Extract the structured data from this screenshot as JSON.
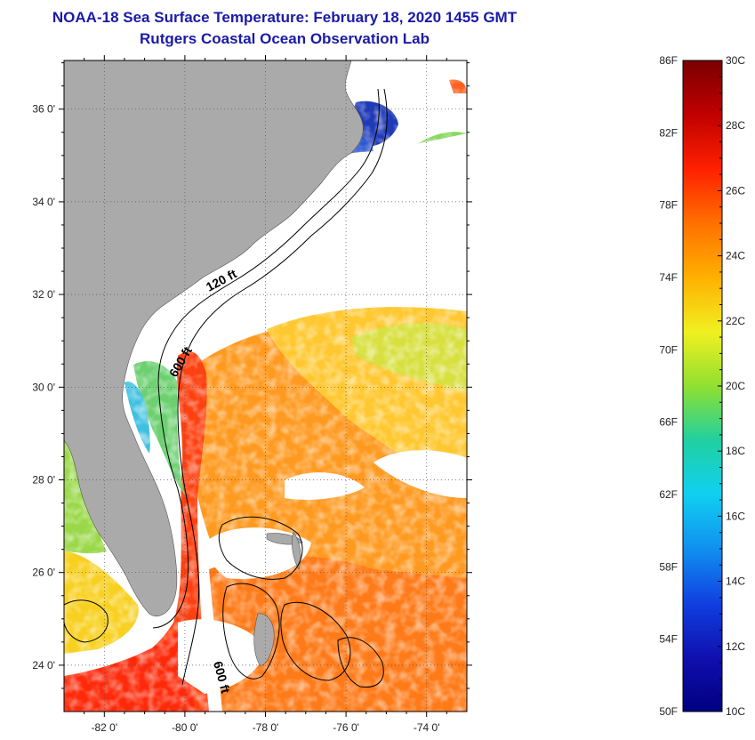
{
  "title": {
    "line1": "NOAA-18 Sea Surface Temperature:  February 18, 2020 1455 GMT",
    "line2": "Rutgers Coastal Ocean Observation Lab"
  },
  "map": {
    "lat_ticks": [
      {
        "value": 36,
        "label": "36 0'"
      },
      {
        "value": 34,
        "label": "34 0'"
      },
      {
        "value": 32,
        "label": "32 0'"
      },
      {
        "value": 30,
        "label": "30 0'"
      },
      {
        "value": 28,
        "label": "28 0'"
      },
      {
        "value": 26,
        "label": "26 0'"
      },
      {
        "value": 24,
        "label": "24 0'"
      }
    ],
    "lon_ticks": [
      {
        "value": -82,
        "label": "-82 0'"
      },
      {
        "value": -80,
        "label": "-80 0'"
      },
      {
        "value": -78,
        "label": "-78 0'"
      },
      {
        "value": -76,
        "label": "-76 0'"
      },
      {
        "value": -74,
        "label": "-74 0'"
      }
    ],
    "contour_labels": {
      "c120": "120 ft",
      "c600a": "600 ft",
      "c600b": "600 ft"
    },
    "colors": {
      "land": "#aaaaaa",
      "cloud": "#ffffff",
      "warm_gulfstream": "#ff5a10",
      "orange": "#ff9a20",
      "yellow": "#f8e020",
      "green": "#7ed858",
      "cyan": "#26c8e8",
      "blue": "#1f3ab8"
    }
  },
  "colorbar": {
    "fahrenheit": [
      "86F",
      "82F",
      "78F",
      "74F",
      "70F",
      "66F",
      "62F",
      "58F",
      "54F",
      "50F"
    ],
    "celsius": [
      "30C",
      "28C",
      "26C",
      "24C",
      "22C",
      "20C",
      "18C",
      "16C",
      "14C",
      "12C",
      "10C"
    ],
    "stops": [
      "#7a0000",
      "#c00000",
      "#ff2000",
      "#ff7000",
      "#ffb000",
      "#f0f020",
      "#90e030",
      "#20d0a0",
      "#10d0f0",
      "#1090f0",
      "#1040e0",
      "#1010b0",
      "#000080"
    ]
  }
}
